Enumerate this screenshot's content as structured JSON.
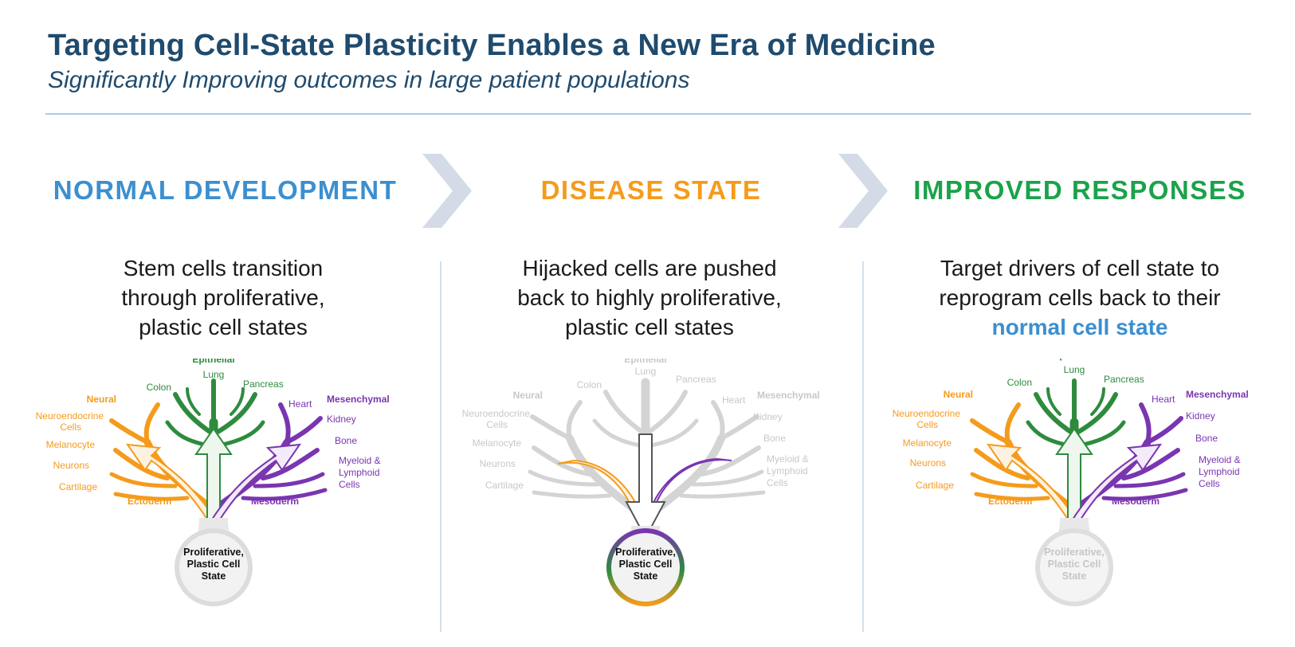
{
  "header": {
    "title": "Targeting Cell-State Plasticity Enables a New Era of Medicine",
    "subtitle": "Significantly Improving outcomes in large patient populations"
  },
  "columns": [
    {
      "heading": "NORMAL DEVELOPMENT",
      "color": "#3b8fd0",
      "description": [
        "Stem cells transition",
        "through proliferative,",
        "plastic cell states"
      ]
    },
    {
      "heading": "DISEASE STATE",
      "color": "#f59b1c",
      "description": [
        "Hijacked cells are pushed",
        "back to highly proliferative,",
        "plastic cell states"
      ]
    },
    {
      "heading": "IMPROVED RESPONSES",
      "color": "#1aa34a",
      "description": [
        "Target drivers of cell state to",
        "reprogram cells back to their"
      ],
      "highlight": "normal cell state"
    }
  ],
  "tree": {
    "epithelial": "Epithelial",
    "lung": "Lung",
    "colon": "Colon",
    "pancreas": "Pancreas",
    "neural": "Neural",
    "neuroendocrine": [
      "Neuroendocrine",
      "Cells"
    ],
    "melanocyte": "Melanocyte",
    "neurons": "Neurons",
    "cartilage": "Cartilage",
    "ectoderm": "Ectoderm",
    "mesenchymal": "Mesenchymal",
    "heart": "Heart",
    "kidney": "Kidney",
    "bone": "Bone",
    "myeloid": [
      "Myeloid &",
      "Lymphoid",
      "Cells"
    ],
    "mesoderm": "Mesoderm",
    "core": [
      "Proliferative,",
      "Plastic Cell",
      "State"
    ]
  },
  "colors": {
    "neural": "#f59b1c",
    "epithelial": "#2e8b3e",
    "mesenchymal": "#7a35b0",
    "faded": "#d4d4d4"
  }
}
